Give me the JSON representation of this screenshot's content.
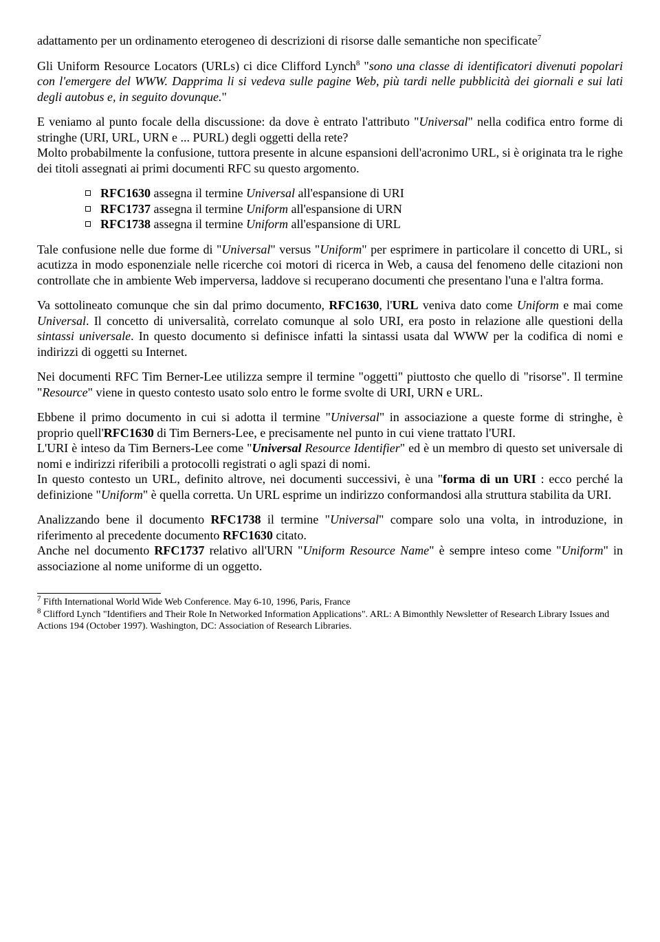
{
  "para1_a": "adattamento per un ordinamento eterogeneo di descrizioni di risorse dalle semantiche non specificate",
  "para1_sup": "7",
  "para2_a": "Gli Uniform Resource Locators (URLs) ci dice Clifford Lynch",
  "para2_sup": "8",
  "para2_b": " \"",
  "para2_italic": "sono una classe di identificatori divenuti popolari con l'emergere del WWW. Dapprima li si vedeva sulle pagine Web, più tardi nelle pubblicità dei giornali e sui lati degli autobus e, in seguito dovunque.",
  "para2_c": "\"",
  "para3_a": "E veniamo al punto focale della discussione: da dove  è entrato l'attributo \"",
  "para3_i1": "Universal",
  "para3_b": "\" nella codifica entro forme di stringhe (URI, URL, URN e ... PURL) degli oggetti della rete?",
  "para3_c": "Molto probabilmente la confusione, tuttora presente in alcune espansioni dell'acronimo URL, si è originata  tra le righe dei titoli assegnati ai primi documenti RFC su questo argomento.",
  "li1_bold": "RFC1630",
  "li1_a": " assegna il termine ",
  "li1_i": "Universal",
  "li1_b": " all'espansione di URI",
  "li2_bold": "RFC1737",
  "li2_a": " assegna il termine ",
  "li2_i": "Uniform",
  "li2_b": " all'espansione di URN",
  "li3_bold": "RFC1738",
  "li3_a": " assegna il termine ",
  "li3_i": "Uniform",
  "li3_b": " all'espansione di URL",
  "para4_a": "Tale confusione nelle due forme di \"",
  "para4_i1": "Universal",
  "para4_b": "\" versus \"",
  "para4_i2": "Uniform",
  "para4_c": "\" per esprimere in particolare il concetto di URL, si acutizza in modo esponenziale nelle ricerche coi motori di ricerca in Web, a causa del fenomeno delle citazioni non controllate che in ambiente Web imperversa, laddove si recuperano documenti che presentano l'una e l'altra forma.",
  "para5_a": "Va sottolineato comunque che sin dal primo documento, ",
  "para5_b1": "RFC1630",
  "para5_b": ", l'",
  "para5_b2": "URL",
  "para5_c": " veniva dato come ",
  "para5_i1": "Uniform",
  "para5_d": " e mai come ",
  "para5_i2": "Universal",
  "para5_e": ". Il concetto di universalità, correlato comunque al solo URI, era posto in relazione alle questioni della ",
  "para5_i3": "sintassi universale",
  "para5_f": ". In questo documento si definisce infatti la sintassi usata dal WWW per la codifica di nomi e indirizzi di oggetti su Internet.",
  "para6_a": "Nei documenti RFC Tim Berner-Lee utilizza sempre il termine \"oggetti\" piuttosto che quello di \"risorse\". Il termine \"",
  "para6_i1": "Resource",
  "para6_b": "\" viene in questo contesto usato solo entro le forme svolte di URI, URN e URL.",
  "para7_a": "Ebbene il primo documento in cui si adotta il termine \"",
  "para7_i1": "Universal",
  "para7_b": "\" in associazione a queste forme di stringhe, è proprio quell'",
  "para7_b1": "RFC1630",
  "para7_c": " di Tim Berners-Lee, e precisamente nel punto in cui viene trattato l'URI.",
  "para7_d": "L'URI è inteso da Tim Berners-Lee come \"",
  "para7_bi": "Universal",
  "para7_i2": " Resource Identifier",
  "para7_e": "\" ed è un membro di questo set universale di nomi e indirizzi riferibili a protocolli registrati o agli spazi di nomi.",
  "para7_f": "In questo contesto un URL, definito altrove, nei documenti successivi, è una \"",
  "para7_b2": "forma di un URI",
  "para7_g": " : ecco perché la definizione \"",
  "para7_i3": "Uniform",
  "para7_h": "\" è quella corretta. Un URL esprime un indirizzo conformandosi alla struttura stabilita da URI.",
  "para8_a": "Analizzando bene il documento ",
  "para8_b1": "RFC1738",
  "para8_b": " il termine \"",
  "para8_i1": "Universal",
  "para8_c": "\" compare solo una volta, in introduzione, in riferimento al precedente documento ",
  "para8_b2": "RFC1630",
  "para8_d": " citato.",
  "para8_e": "Anche nel documento ",
  "para8_b3": "RFC1737",
  "para8_f": " relativo all'URN \"",
  "para8_i2": "Uniform Resource Name",
  "para8_g": "\" è sempre inteso come \"",
  "para8_i3": "Uniform",
  "para8_h": "\" in associazione al nome uniforme di un oggetto.",
  "fn7_sup": "7",
  "fn7": " Fifth International World Wide Web Conference. May 6-10, 1996, Paris, France",
  "fn8_sup": "8",
  "fn8": " Clifford Lynch \"Identifiers and Their Role In Networked Information Applications\". ARL: A Bimonthly Newsletter of Research Library Issues and Actions 194 (October 1997). Washington, DC: Association of Research Libraries."
}
